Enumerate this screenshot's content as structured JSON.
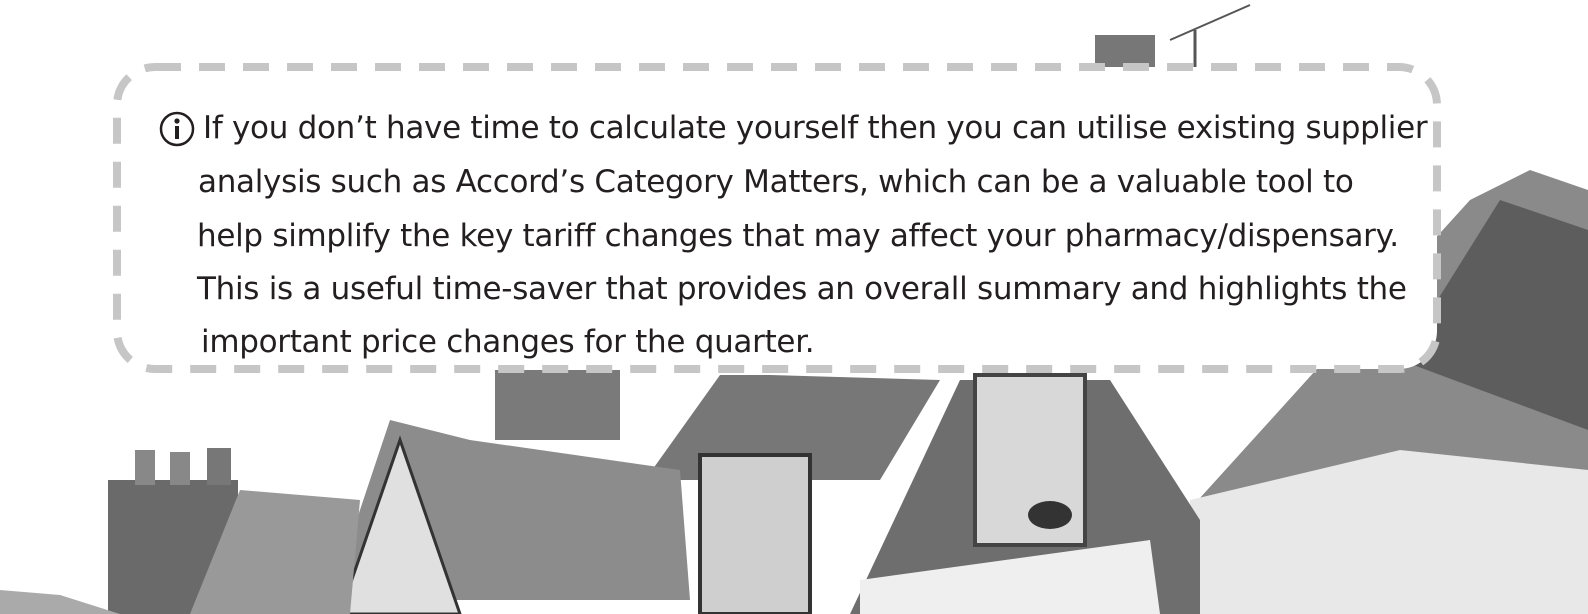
{
  "callout": {
    "lines": [
      "If you don’t have time to calculate yourself then you can utilise existing supplier",
      "analysis such as Accord’s Category Matters, which can be a valuable tool to",
      "help simplify the key tariff changes that may affect your pharmacy/dispensary.",
      "This is a useful time-saver that provides an overall summary and highlights the",
      "important price changes for the quarter."
    ]
  }
}
